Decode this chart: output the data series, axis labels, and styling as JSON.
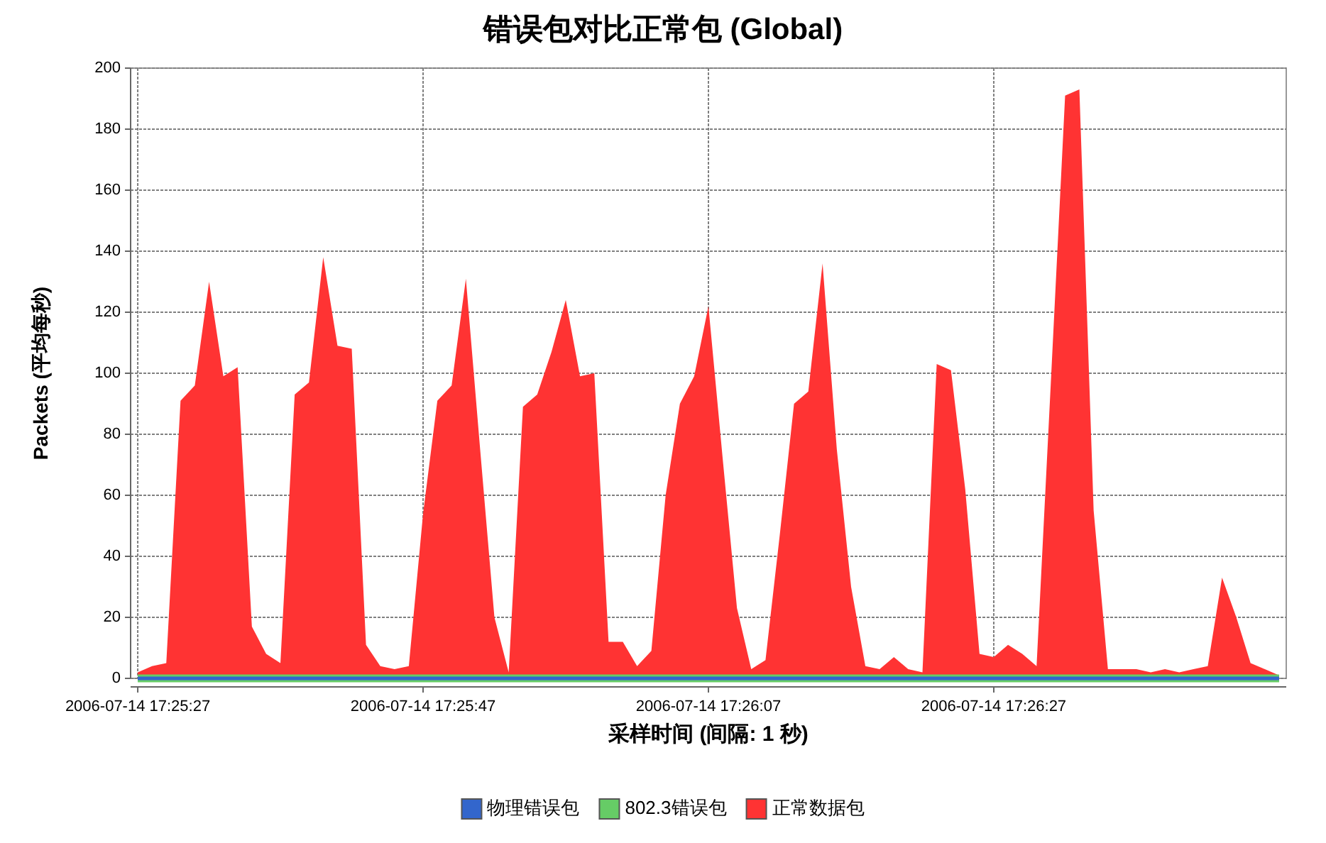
{
  "chart_data": {
    "type": "area",
    "title": "错误包对比正常包 (Global)",
    "xlabel": "采样时间 (间隔: 1 秒)",
    "ylabel": "Packets (平均每秒)",
    "categories": [
      "2006-07-14 17:25:27",
      null,
      null,
      null,
      null,
      null,
      null,
      null,
      null,
      null,
      null,
      null,
      null,
      null,
      null,
      null,
      null,
      null,
      null,
      null,
      "2006-07-14 17:25:47",
      null,
      null,
      null,
      null,
      null,
      null,
      null,
      null,
      null,
      null,
      null,
      null,
      null,
      null,
      null,
      null,
      null,
      null,
      null,
      "2006-07-14 17:26:07",
      null,
      null,
      null,
      null,
      null,
      null,
      null,
      null,
      null,
      null,
      null,
      null,
      null,
      null,
      null,
      null,
      null,
      null,
      null,
      "2006-07-14 17:26:27",
      null,
      null,
      null,
      null,
      null,
      null,
      null,
      null,
      null,
      null,
      null,
      null,
      null,
      null,
      null,
      null,
      null,
      null,
      null,
      null
    ],
    "series": [
      {
        "name": "物理错误包",
        "type": "line",
        "color": "#3366cc",
        "values": [
          0,
          0,
          0,
          0,
          0,
          0,
          0,
          0,
          0,
          0,
          0,
          0,
          0,
          0,
          0,
          0,
          0,
          0,
          0,
          0,
          0,
          0,
          0,
          0,
          0,
          0,
          0,
          0,
          0,
          0,
          0,
          0,
          0,
          0,
          0,
          0,
          0,
          0,
          0,
          0,
          0,
          0,
          0,
          0,
          0,
          0,
          0,
          0,
          0,
          0,
          0,
          0,
          0,
          0,
          0,
          0,
          0,
          0,
          0,
          0,
          0,
          0,
          0,
          0,
          0,
          0,
          0,
          0,
          0,
          0,
          0,
          0,
          0,
          0,
          0,
          0,
          0,
          0,
          0,
          0,
          0
        ]
      },
      {
        "name": "802.3错误包",
        "type": "line",
        "color": "#66cc66",
        "values": [
          0,
          0,
          0,
          0,
          0,
          0,
          0,
          0,
          0,
          0,
          0,
          0,
          0,
          0,
          0,
          0,
          0,
          0,
          0,
          0,
          0,
          0,
          0,
          0,
          0,
          0,
          0,
          0,
          0,
          0,
          0,
          0,
          0,
          0,
          0,
          0,
          0,
          0,
          0,
          0,
          0,
          0,
          0,
          0,
          0,
          0,
          0,
          0,
          0,
          0,
          0,
          0,
          0,
          0,
          0,
          0,
          0,
          0,
          0,
          0,
          0,
          0,
          0,
          0,
          0,
          0,
          0,
          0,
          0,
          0,
          0,
          0,
          0,
          0,
          0,
          0,
          0,
          0,
          0,
          0,
          0
        ]
      },
      {
        "name": "正常数据包",
        "color": "#ff3333",
        "values": [
          2,
          4,
          5,
          91,
          96,
          130,
          99,
          102,
          17,
          8,
          5,
          93,
          97,
          138,
          109,
          108,
          11,
          4,
          3,
          4,
          54,
          91,
          96,
          131,
          75,
          20,
          2,
          89,
          93,
          107,
          124,
          99,
          100,
          12,
          12,
          4,
          9,
          60,
          90,
          99,
          122,
          72,
          23,
          3,
          6,
          47,
          90,
          94,
          136,
          75,
          30,
          4,
          3,
          7,
          3,
          2,
          103,
          101,
          62,
          8,
          7,
          11,
          8,
          4,
          97,
          191,
          193,
          55,
          3,
          3,
          3,
          2,
          3,
          2,
          3,
          4,
          33,
          20,
          5,
          3,
          1
        ]
      }
    ],
    "ylim": [
      0,
      200
    ],
    "yticks": [
      0,
      20,
      40,
      60,
      80,
      100,
      120,
      140,
      160,
      180,
      200
    ],
    "grid": true,
    "legend": "bottom"
  }
}
